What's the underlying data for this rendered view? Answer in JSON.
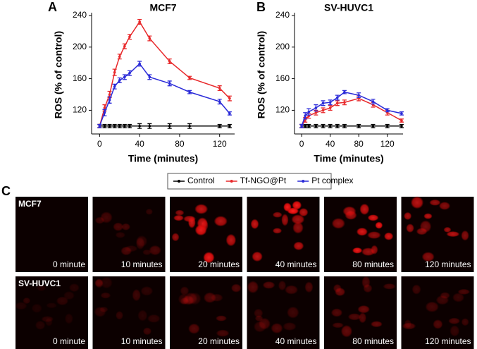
{
  "panels": [
    "A",
    "B",
    "C"
  ],
  "chart_data": [
    {
      "type": "line",
      "title": "MCF7",
      "x_label": "Time (minutes)",
      "y_label": "ROS (% of control)",
      "x": [
        0,
        5,
        10,
        15,
        20,
        25,
        30,
        40,
        50,
        70,
        90,
        120,
        130
      ],
      "xlim": [
        -8,
        135
      ],
      "xticks": [
        0,
        40,
        80,
        120
      ],
      "ylim": [
        90,
        240
      ],
      "yticks": [
        120,
        160,
        200,
        240
      ],
      "series": [
        {
          "name": "Control",
          "color": "#000000",
          "values": [
            100,
            100,
            100,
            100,
            100,
            100,
            100,
            100,
            100,
            100,
            100,
            100,
            100
          ],
          "errors": [
            2,
            2,
            2,
            2,
            2,
            2,
            2,
            3,
            3,
            3,
            3,
            2,
            2
          ]
        },
        {
          "name": "Tf-NGO@Pt",
          "color": "#e8282a",
          "values": [
            100,
            123,
            140,
            168,
            188,
            201,
            213,
            232,
            211,
            182,
            161,
            148,
            135
          ],
          "errors": [
            2,
            4,
            4,
            4,
            3,
            3,
            3,
            3,
            3,
            3,
            2,
            3,
            3
          ]
        },
        {
          "name": "Pt complex",
          "color": "#2a2ad8",
          "values": [
            100,
            117,
            133,
            150,
            158,
            162,
            167,
            179,
            162,
            154,
            143,
            131,
            116
          ],
          "errors": [
            2,
            4,
            4,
            3,
            3,
            3,
            3,
            3,
            3,
            3,
            2,
            3,
            2
          ]
        }
      ]
    },
    {
      "type": "line",
      "title": "SV-HUVC1",
      "x_label": "Time (minutes)",
      "y_label": "ROS (% of control)",
      "x": [
        0,
        5,
        10,
        20,
        30,
        40,
        50,
        60,
        80,
        100,
        120,
        140
      ],
      "xlim": [
        -10,
        142
      ],
      "xticks": [
        0,
        40,
        80,
        120
      ],
      "ylim": [
        90,
        240
      ],
      "yticks": [
        120,
        160,
        200,
        240
      ],
      "series": [
        {
          "name": "Control",
          "color": "#000000",
          "values": [
            100,
            100,
            100,
            100,
            100,
            100,
            100,
            100,
            100,
            100,
            100,
            100
          ],
          "errors": [
            2,
            2,
            2,
            2,
            2,
            2,
            2,
            2,
            2,
            2,
            2,
            2
          ]
        },
        {
          "name": "Tf-NGO@Pt",
          "color": "#e8282a",
          "values": [
            100,
            108,
            113,
            117,
            120,
            123,
            129,
            130,
            135,
            127,
            117,
            107
          ],
          "errors": [
            2,
            3,
            3,
            3,
            3,
            3,
            3,
            3,
            3,
            3,
            3,
            2
          ]
        },
        {
          "name": "Pt complex",
          "color": "#2a2ad8",
          "values": [
            100,
            113,
            118,
            123,
            129,
            130,
            136,
            143,
            139,
            131,
            120,
            116
          ],
          "errors": [
            2,
            4,
            4,
            4,
            3,
            3,
            3,
            2,
            3,
            3,
            2,
            2
          ]
        }
      ]
    }
  ],
  "panel_c": {
    "rows": [
      "MCF7",
      "SV-HUVC1"
    ],
    "times": [
      "0 minute",
      "10 minutes",
      "20 minutes",
      "40 minutes",
      "80 minutes",
      "120 minutes"
    ]
  }
}
